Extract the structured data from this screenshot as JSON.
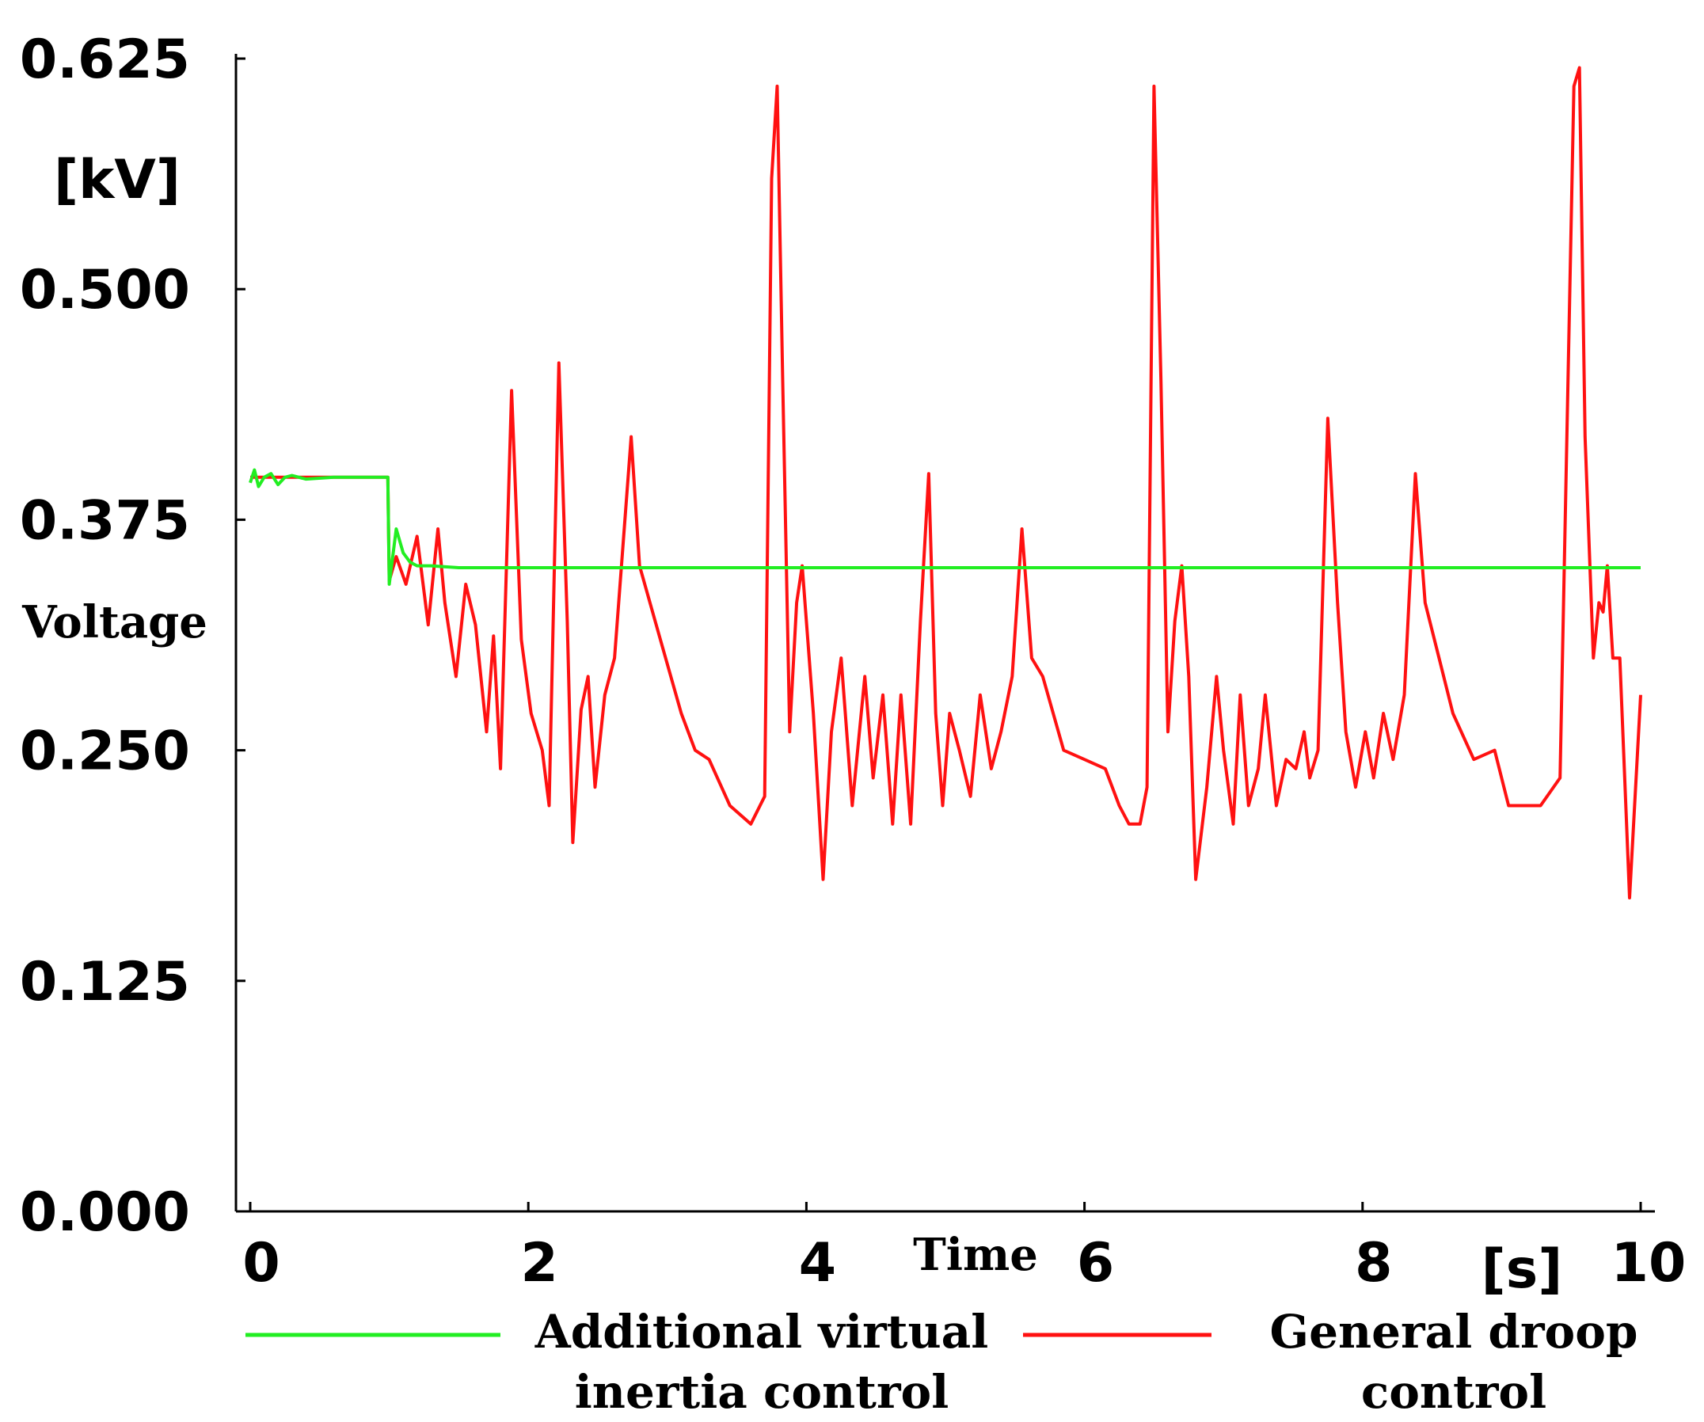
{
  "chart_data": {
    "type": "line",
    "ylabel": "Voltage",
    "ylabel_unit": "[kV]",
    "xlabel": "Time",
    "xlabel_unit": "[s]",
    "xlim": [
      0,
      10
    ],
    "ylim": [
      0,
      0.625
    ],
    "x_ticks": [
      "0",
      "2",
      "4",
      "6",
      "8",
      "10"
    ],
    "x_tick_values": [
      0,
      2,
      4,
      6,
      8,
      10
    ],
    "y_ticks": [
      "0.000",
      "0.125",
      "0.250",
      "0.375",
      "0.500",
      "0.625"
    ],
    "y_tick_values": [
      0,
      0.125,
      0.25,
      0.375,
      0.5,
      0.625
    ],
    "grid": false,
    "legend_position": "bottom",
    "series": [
      {
        "name": "Additional virtual inertia control",
        "name_lines": [
          "Additional virtual",
          "inertia control"
        ],
        "color": "#22ee22",
        "x": [
          0,
          0.03,
          0.06,
          0.1,
          0.15,
          0.2,
          0.25,
          0.3,
          0.4,
          0.6,
          0.8,
          0.99,
          1.0,
          1.05,
          1.1,
          1.15,
          1.2,
          1.3,
          1.5,
          2.0,
          3.0,
          5.0,
          7.0,
          9.0,
          10.0
        ],
        "y": [
          0.395,
          0.402,
          0.393,
          0.398,
          0.4,
          0.394,
          0.398,
          0.399,
          0.397,
          0.398,
          0.398,
          0.398,
          0.34,
          0.37,
          0.357,
          0.352,
          0.35,
          0.35,
          0.349,
          0.349,
          0.349,
          0.349,
          0.349,
          0.349,
          0.349
        ]
      },
      {
        "name": "General droop control",
        "name_lines": [
          "General droop",
          "control"
        ],
        "color": "#ff1111",
        "x": [
          0,
          0.3,
          0.6,
          0.99,
          1.0,
          1.05,
          1.12,
          1.2,
          1.28,
          1.35,
          1.4,
          1.48,
          1.55,
          1.62,
          1.7,
          1.75,
          1.8,
          1.88,
          1.95,
          2.02,
          2.1,
          2.15,
          2.22,
          2.28,
          2.32,
          2.38,
          2.43,
          2.48,
          2.55,
          2.62,
          2.68,
          2.74,
          2.8,
          2.95,
          3.1,
          3.2,
          3.3,
          3.45,
          3.6,
          3.7,
          3.75,
          3.79,
          3.83,
          3.88,
          3.93,
          3.97,
          4.05,
          4.12,
          4.18,
          4.25,
          4.33,
          4.42,
          4.48,
          4.55,
          4.62,
          4.68,
          4.75,
          4.82,
          4.88,
          4.93,
          4.98,
          5.03,
          5.1,
          5.18,
          5.25,
          5.33,
          5.4,
          5.48,
          5.55,
          5.62,
          5.7,
          5.85,
          6.0,
          6.15,
          6.25,
          6.32,
          6.4,
          6.45,
          6.5,
          6.55,
          6.6,
          6.65,
          6.7,
          6.75,
          6.8,
          6.88,
          6.95,
          7.0,
          7.07,
          7.12,
          7.18,
          7.25,
          7.3,
          7.38,
          7.45,
          7.52,
          7.58,
          7.62,
          7.68,
          7.75,
          7.82,
          7.88,
          7.95,
          8.02,
          8.08,
          8.15,
          8.22,
          8.3,
          8.38,
          8.45,
          8.55,
          8.65,
          8.8,
          8.95,
          9.05,
          9.15,
          9.28,
          9.42,
          9.52,
          9.56,
          9.6,
          9.66,
          9.7,
          9.73,
          9.76,
          9.8,
          9.85,
          9.92,
          10.0
        ],
        "y": [
          0.398,
          0.398,
          0.398,
          0.398,
          0.342,
          0.355,
          0.34,
          0.366,
          0.318,
          0.37,
          0.33,
          0.29,
          0.34,
          0.318,
          0.26,
          0.312,
          0.24,
          0.445,
          0.31,
          0.27,
          0.25,
          0.22,
          0.46,
          0.32,
          0.2,
          0.272,
          0.29,
          0.23,
          0.28,
          0.3,
          0.36,
          0.42,
          0.35,
          0.31,
          0.27,
          0.25,
          0.245,
          0.22,
          0.21,
          0.225,
          0.56,
          0.61,
          0.45,
          0.26,
          0.33,
          0.35,
          0.27,
          0.18,
          0.26,
          0.3,
          0.22,
          0.29,
          0.235,
          0.28,
          0.21,
          0.28,
          0.21,
          0.32,
          0.4,
          0.27,
          0.22,
          0.27,
          0.25,
          0.225,
          0.28,
          0.24,
          0.26,
          0.29,
          0.37,
          0.3,
          0.29,
          0.25,
          0.245,
          0.24,
          0.22,
          0.21,
          0.21,
          0.23,
          0.61,
          0.45,
          0.26,
          0.32,
          0.35,
          0.29,
          0.18,
          0.23,
          0.29,
          0.25,
          0.21,
          0.28,
          0.22,
          0.24,
          0.28,
          0.22,
          0.245,
          0.24,
          0.26,
          0.235,
          0.25,
          0.43,
          0.33,
          0.26,
          0.23,
          0.26,
          0.235,
          0.27,
          0.245,
          0.28,
          0.4,
          0.33,
          0.3,
          0.27,
          0.245,
          0.25,
          0.22,
          0.22,
          0.22,
          0.235,
          0.61,
          0.62,
          0.42,
          0.3,
          0.33,
          0.325,
          0.35,
          0.3,
          0.3,
          0.17,
          0.28
        ]
      }
    ]
  }
}
